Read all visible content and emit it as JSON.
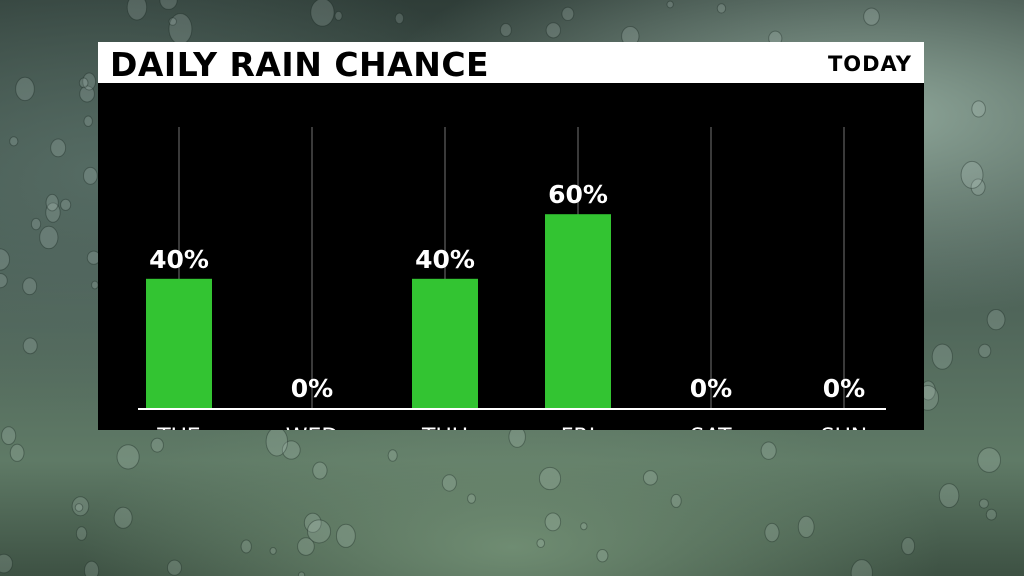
{
  "header": {
    "title": "DAILY RAIN CHANCE",
    "badge": "TODAY"
  },
  "colors": {
    "bar": "#33c432",
    "panel_bg": "#000000",
    "title_bg": "#ffffff",
    "gridline": "#3a3a3a",
    "baseline": "#ffffff",
    "text": "#ffffff"
  },
  "chart_data": {
    "type": "bar",
    "title": "DAILY RAIN CHANCE",
    "categories": [
      "TUE",
      "WED",
      "THU",
      "FRI",
      "SAT",
      "SUN"
    ],
    "values": [
      40,
      0,
      40,
      60,
      0,
      0
    ],
    "value_labels": [
      "40%",
      "0%",
      "40%",
      "60%",
      "0%",
      "0%"
    ],
    "unit": "%",
    "ylim": [
      0,
      100
    ],
    "grid": true
  }
}
